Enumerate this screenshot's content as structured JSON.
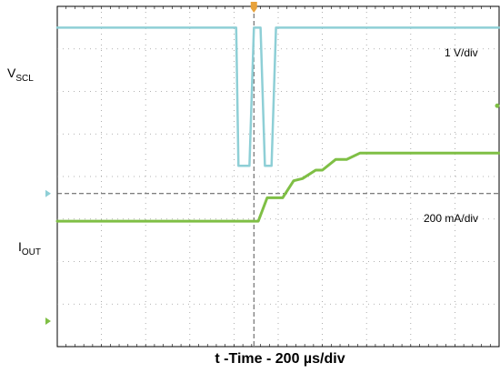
{
  "chart_data": {
    "type": "line",
    "xlabel": "t -Time - 200 µs/div",
    "x_divisions": 10,
    "y_divisions": 8,
    "grid": true,
    "series": [
      {
        "name": "VSCL",
        "scale": "1 V/div",
        "color": "#8ecfd6",
        "level_marker_y_div": 3.6,
        "high_y_div": 7.5,
        "low_y_div": 4.25,
        "x_div": [
          0,
          4.05,
          4.1,
          4.35,
          4.45,
          4.6,
          4.7,
          4.85,
          4.95,
          5.4,
          10
        ],
        "y_div": [
          7.5,
          7.5,
          4.25,
          4.25,
          7.5,
          7.5,
          4.25,
          4.25,
          7.5,
          7.5,
          7.5
        ]
      },
      {
        "name": "IOUT",
        "scale": "200 mA/div",
        "color": "#7fbf45",
        "level_marker_y_div": 0.6,
        "x_div": [
          0,
          4.55,
          4.75,
          5.1,
          5.35,
          5.55,
          5.85,
          6.0,
          6.3,
          6.55,
          6.85,
          10
        ],
        "y_div": [
          2.95,
          2.95,
          3.5,
          3.5,
          3.9,
          3.95,
          4.15,
          4.15,
          4.4,
          4.4,
          4.55,
          4.55
        ]
      }
    ],
    "trigger_marker_x_div": 4.45,
    "cursor_h_y_div": 3.6,
    "cursor_v_x_div": 4.45
  },
  "labels": {
    "vscl_main": "V",
    "vscl_sub": "SCL",
    "iout_main": "I",
    "iout_sub": "OUT",
    "vscl_scale": "1 V/div",
    "iout_scale": "200 mA/div",
    "xlabel": "t -Time - 200 µs/div"
  },
  "colors": {
    "vscl": "#8ecfd6",
    "iout": "#7fbf45",
    "trigger": "#e8a23a",
    "grid": "#9a9a9a",
    "cursor": "#555555",
    "frame": "#000000"
  }
}
